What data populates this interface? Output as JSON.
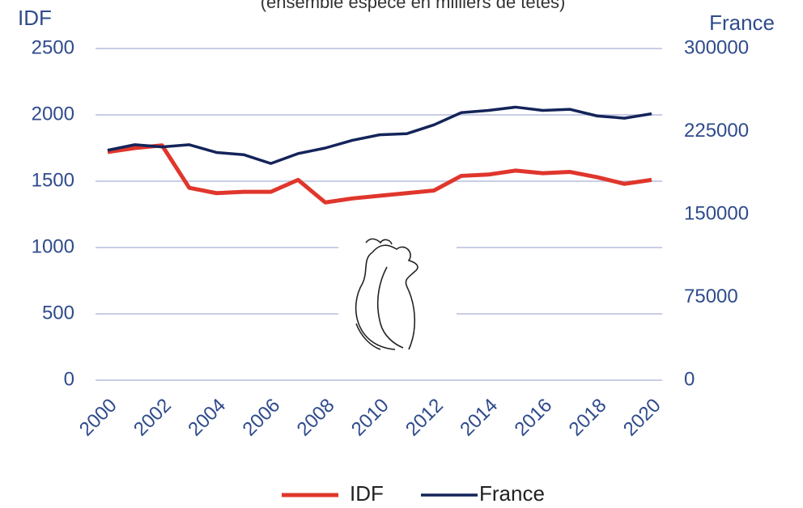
{
  "chart_data": {
    "type": "line",
    "subtitle": "(ensemble espèce en milliers de têtes)",
    "ylabel": "IDF",
    "y2label": "France",
    "x": [
      2000,
      2001,
      2002,
      2003,
      2004,
      2005,
      2006,
      2007,
      2008,
      2009,
      2010,
      2011,
      2012,
      2013,
      2014,
      2015,
      2016,
      2017,
      2018,
      2019,
      2020
    ],
    "xlim": [
      2000,
      2020
    ],
    "xticks": [
      2000,
      2002,
      2004,
      2006,
      2008,
      2010,
      2012,
      2014,
      2016,
      2018,
      2020
    ],
    "ylim": [
      0,
      2500
    ],
    "yticks": [
      0,
      500,
      1000,
      1500,
      2000,
      2500
    ],
    "y2lim": [
      0,
      300000
    ],
    "y2ticks": [
      0,
      75000,
      150000,
      225000,
      300000
    ],
    "grid": true,
    "legend": "bottom",
    "series": [
      {
        "name": "IDF",
        "color": "#e0362c",
        "values": [
          1720,
          1750,
          1770,
          1450,
          1410,
          1420,
          1420,
          1510,
          1340,
          1370,
          1390,
          1410,
          1430,
          1540,
          1550,
          1580,
          1560,
          1570,
          1530,
          1480,
          1510
        ]
      },
      {
        "name": "France",
        "color": "#14245a",
        "axis": "y2",
        "values": [
          208000,
          213000,
          211000,
          213000,
          206000,
          204000,
          196000,
          205000,
          210000,
          217000,
          222000,
          223000,
          231000,
          242000,
          244000,
          247000,
          244000,
          245000,
          239000,
          237000,
          241000
        ]
      }
    ]
  }
}
